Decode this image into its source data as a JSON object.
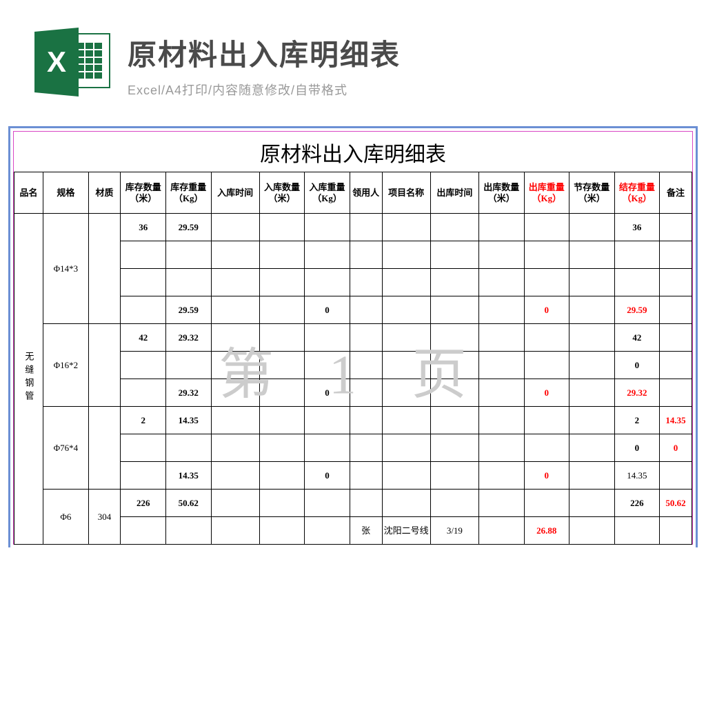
{
  "header": {
    "icon_letter": "X",
    "title": "原材料出入库明细表",
    "subtitle": "Excel/A4打印/内容随意修改/自带格式"
  },
  "document": {
    "title": "原材料出入库明细表",
    "watermark": "第 1 页"
  },
  "table": {
    "columns": [
      "品名",
      "规格",
      "材质",
      "库存数量（米）",
      "库存重量（Kg）",
      "入库时间",
      "入库数量（米）",
      "入库重量（Kg）",
      "领用人",
      "项目名称",
      "出库时间",
      "出库数量（米）",
      "出库重量（Kg）",
      "节存数量（米）",
      "结存重量（Kg）",
      "备注"
    ],
    "red_header_indices": [
      12,
      14
    ],
    "product_name": "无缝钢管",
    "groups": [
      {
        "spec": "Φ14*3",
        "material": "",
        "rows": [
          {
            "c": [
              "36",
              "29.59",
              "",
              "",
              "",
              "",
              "",
              "",
              "",
              "",
              "",
              "36",
              "",
              ""
            ],
            "bold": [
              0,
              1,
              11
            ]
          },
          {
            "c": [
              "",
              "",
              "",
              "",
              "",
              "",
              "",
              "",
              "",
              "",
              "",
              "",
              "",
              ""
            ]
          },
          {
            "c": [
              "",
              "",
              "",
              "",
              "",
              "",
              "",
              "",
              "",
              "",
              "",
              "",
              "",
              ""
            ]
          },
          {
            "c": [
              "",
              "29.59",
              "",
              "",
              "0",
              "",
              "",
              "",
              "",
              "0",
              "",
              "29.59",
              ""
            ],
            "bold": [
              1,
              4
            ],
            "red": [
              9,
              11
            ]
          }
        ]
      },
      {
        "spec": "Φ16*2",
        "material": "",
        "rows": [
          {
            "c": [
              "42",
              "29.32",
              "",
              "",
              "",
              "",
              "",
              "",
              "",
              "",
              "",
              "42",
              "",
              ""
            ],
            "bold": [
              0,
              1,
              11
            ]
          },
          {
            "c": [
              "",
              "",
              "",
              "",
              "",
              "",
              "",
              "",
              "",
              "",
              "",
              "0",
              "",
              ""
            ],
            "bold": [
              11
            ]
          },
          {
            "c": [
              "",
              "29.32",
              "",
              "",
              "0",
              "",
              "",
              "",
              "",
              "0",
              "",
              "29.32",
              ""
            ],
            "bold": [
              1,
              4
            ],
            "red": [
              9,
              11
            ]
          }
        ]
      },
      {
        "spec": "Φ76*4",
        "material": "",
        "rows": [
          {
            "c": [
              "2",
              "14.35",
              "",
              "",
              "",
              "",
              "",
              "",
              "",
              "",
              "",
              "2",
              "14.35",
              ""
            ],
            "bold": [
              0,
              1,
              11
            ],
            "red": [
              12
            ]
          },
          {
            "c": [
              "",
              "",
              "",
              "",
              "",
              "",
              "",
              "",
              "",
              "",
              "",
              "0",
              "0",
              ""
            ],
            "bold": [
              11
            ],
            "red": [
              12
            ]
          },
          {
            "c": [
              "",
              "14.35",
              "",
              "",
              "0",
              "",
              "",
              "",
              "",
              "0",
              "",
              "14.35",
              ""
            ],
            "bold": [
              1,
              4
            ],
            "red": [
              9,
              12
            ]
          }
        ]
      },
      {
        "spec": "Φ6",
        "material": "304",
        "rows": [
          {
            "c": [
              "226",
              "50.62",
              "",
              "",
              "",
              "",
              "",
              "",
              "",
              "",
              "",
              "226",
              "50.62",
              ""
            ],
            "bold": [
              0,
              1,
              11
            ],
            "red": [
              12
            ]
          },
          {
            "c": [
              "",
              "",
              "",
              "",
              "",
              "张",
              "沈阳二号线",
              "3/19",
              "",
              "26.88",
              "",
              "",
              ""
            ],
            "red": [
              9
            ]
          }
        ]
      }
    ]
  },
  "colors": {
    "excel_green": "#1a7243",
    "border_blue": "#6b8fd4",
    "border_pink": "#d946c5",
    "red": "#ff0000",
    "title_gray": "#4a4a4a",
    "sub_gray": "#999999",
    "watermark": "#cccccc"
  }
}
